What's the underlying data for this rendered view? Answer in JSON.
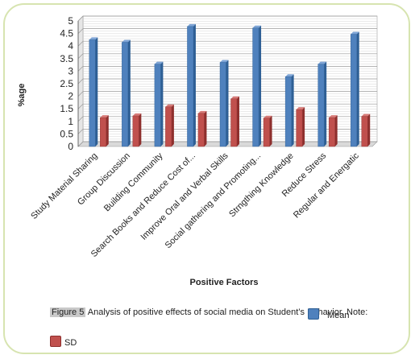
{
  "chart_data": {
    "type": "bar",
    "xlabel": "Positive Factors",
    "ylabel": "%age",
    "ylim": [
      0,
      5
    ],
    "yticks": [
      "0",
      "0.5",
      "1",
      "1.5",
      "2",
      "2.5",
      "3",
      "3.5",
      "4",
      "4.5",
      "5"
    ],
    "grid": true,
    "categories": [
      "Study Material Sharing",
      "Group Discussion",
      "Building Community",
      "Search Books and Reduce Cost of...",
      "Improve Oral and Verbal Skills",
      "Social gathering and Promoting...",
      "Strngthing Knowledge",
      "Reduce Stress",
      "Regular and Energatic"
    ],
    "series": [
      {
        "name": "Mean",
        "color": "#4f81bd",
        "values": [
          4.25,
          4.15,
          3.28,
          4.78,
          3.35,
          4.72,
          2.78,
          3.28,
          4.47
        ]
      },
      {
        "name": "SD",
        "color": "#c0504d",
        "values": [
          1.15,
          1.22,
          1.58,
          1.32,
          1.9,
          1.13,
          1.47,
          1.15,
          1.2
        ]
      }
    ]
  },
  "caption": {
    "figure_label": "Figure 5",
    "text": " Analysis of positive effects of social media on Student’s Behavior. Note:"
  },
  "legend": {
    "mean_label": "Mean",
    "sd_label": "SD"
  }
}
